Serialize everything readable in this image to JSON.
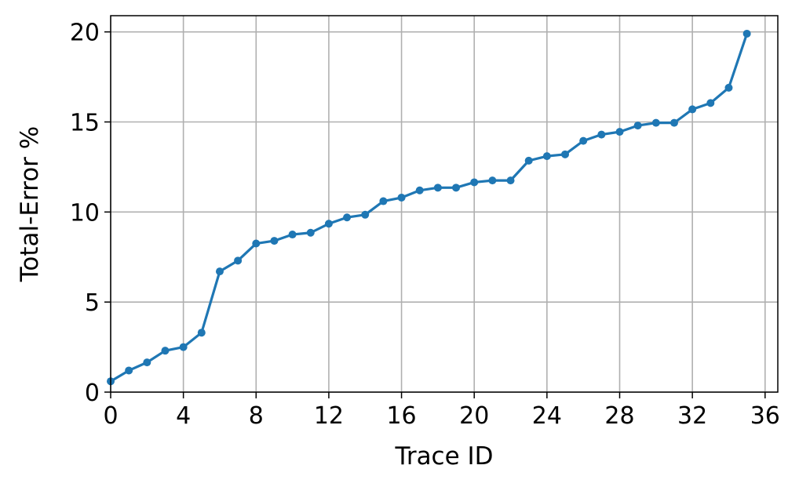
{
  "chart_data": {
    "type": "line",
    "title": "",
    "xlabel": "Trace ID",
    "ylabel": "Total-Error %",
    "xlim": [
      0,
      36.7
    ],
    "ylim": [
      0,
      20.9
    ],
    "xticks": [
      0,
      4,
      8,
      12,
      16,
      20,
      24,
      28,
      32,
      36
    ],
    "yticks": [
      0,
      5,
      10,
      15,
      20
    ],
    "grid": true,
    "legend": "none",
    "series": [
      {
        "color": "#1f77b4",
        "marker": "circle",
        "x": [
          0,
          1,
          2,
          3,
          4,
          5,
          6,
          7,
          8,
          9,
          10,
          11,
          12,
          13,
          14,
          15,
          16,
          17,
          18,
          19,
          20,
          21,
          22,
          23,
          24,
          25,
          26,
          27,
          28,
          29,
          30,
          31,
          32,
          33,
          34,
          35
        ],
        "y": [
          0.6,
          1.2,
          1.65,
          2.3,
          2.5,
          3.3,
          6.7,
          7.3,
          8.25,
          8.4,
          8.75,
          8.85,
          9.35,
          9.7,
          9.85,
          10.6,
          10.8,
          11.2,
          11.35,
          11.35,
          11.65,
          11.75,
          11.75,
          12.85,
          13.1,
          13.2,
          13.95,
          14.3,
          14.45,
          14.8,
          14.95,
          14.95,
          15.7,
          16.05,
          16.9,
          19.9
        ]
      }
    ]
  }
}
